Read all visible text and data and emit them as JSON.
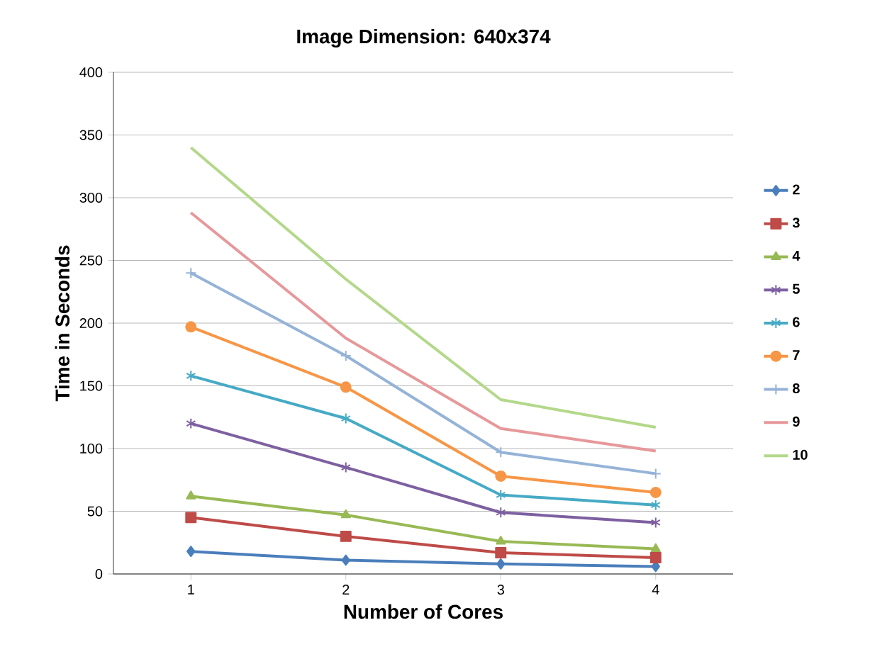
{
  "chart_data": {
    "type": "line",
    "title": "Image Dimension: 640x374",
    "xlabel": "Number of Cores",
    "ylabel": "Time in Seconds",
    "categories": [
      "1",
      "2",
      "3",
      "4"
    ],
    "ylim": [
      0,
      400
    ],
    "yticks": [
      0,
      50,
      100,
      150,
      200,
      250,
      300,
      350,
      400
    ],
    "grid": "y",
    "legend": "right",
    "series": [
      {
        "name": "2",
        "color": "#4a7ebb",
        "marker": "diamond",
        "values": [
          18,
          11,
          8,
          6
        ]
      },
      {
        "name": "3",
        "color": "#be4b48",
        "marker": "square",
        "values": [
          45,
          30,
          17,
          13
        ]
      },
      {
        "name": "4",
        "color": "#98b954",
        "marker": "triangle",
        "values": [
          62,
          47,
          26,
          20
        ]
      },
      {
        "name": "5",
        "color": "#7d60a0",
        "marker": "cross",
        "values": [
          120,
          85,
          49,
          41
        ]
      },
      {
        "name": "6",
        "color": "#46aac5",
        "marker": "cross",
        "values": [
          158,
          124,
          63,
          55
        ]
      },
      {
        "name": "7",
        "color": "#f79646",
        "marker": "circle",
        "values": [
          197,
          149,
          78,
          65
        ]
      },
      {
        "name": "8",
        "color": "#95b3d7",
        "marker": "plus",
        "values": [
          240,
          174,
          97,
          80
        ]
      },
      {
        "name": "9",
        "color": "#e6989a",
        "marker": "none",
        "values": [
          288,
          188,
          116,
          98
        ]
      },
      {
        "name": "10",
        "color": "#b3d88a",
        "marker": "none",
        "values": [
          340,
          235,
          139,
          117
        ]
      }
    ]
  }
}
